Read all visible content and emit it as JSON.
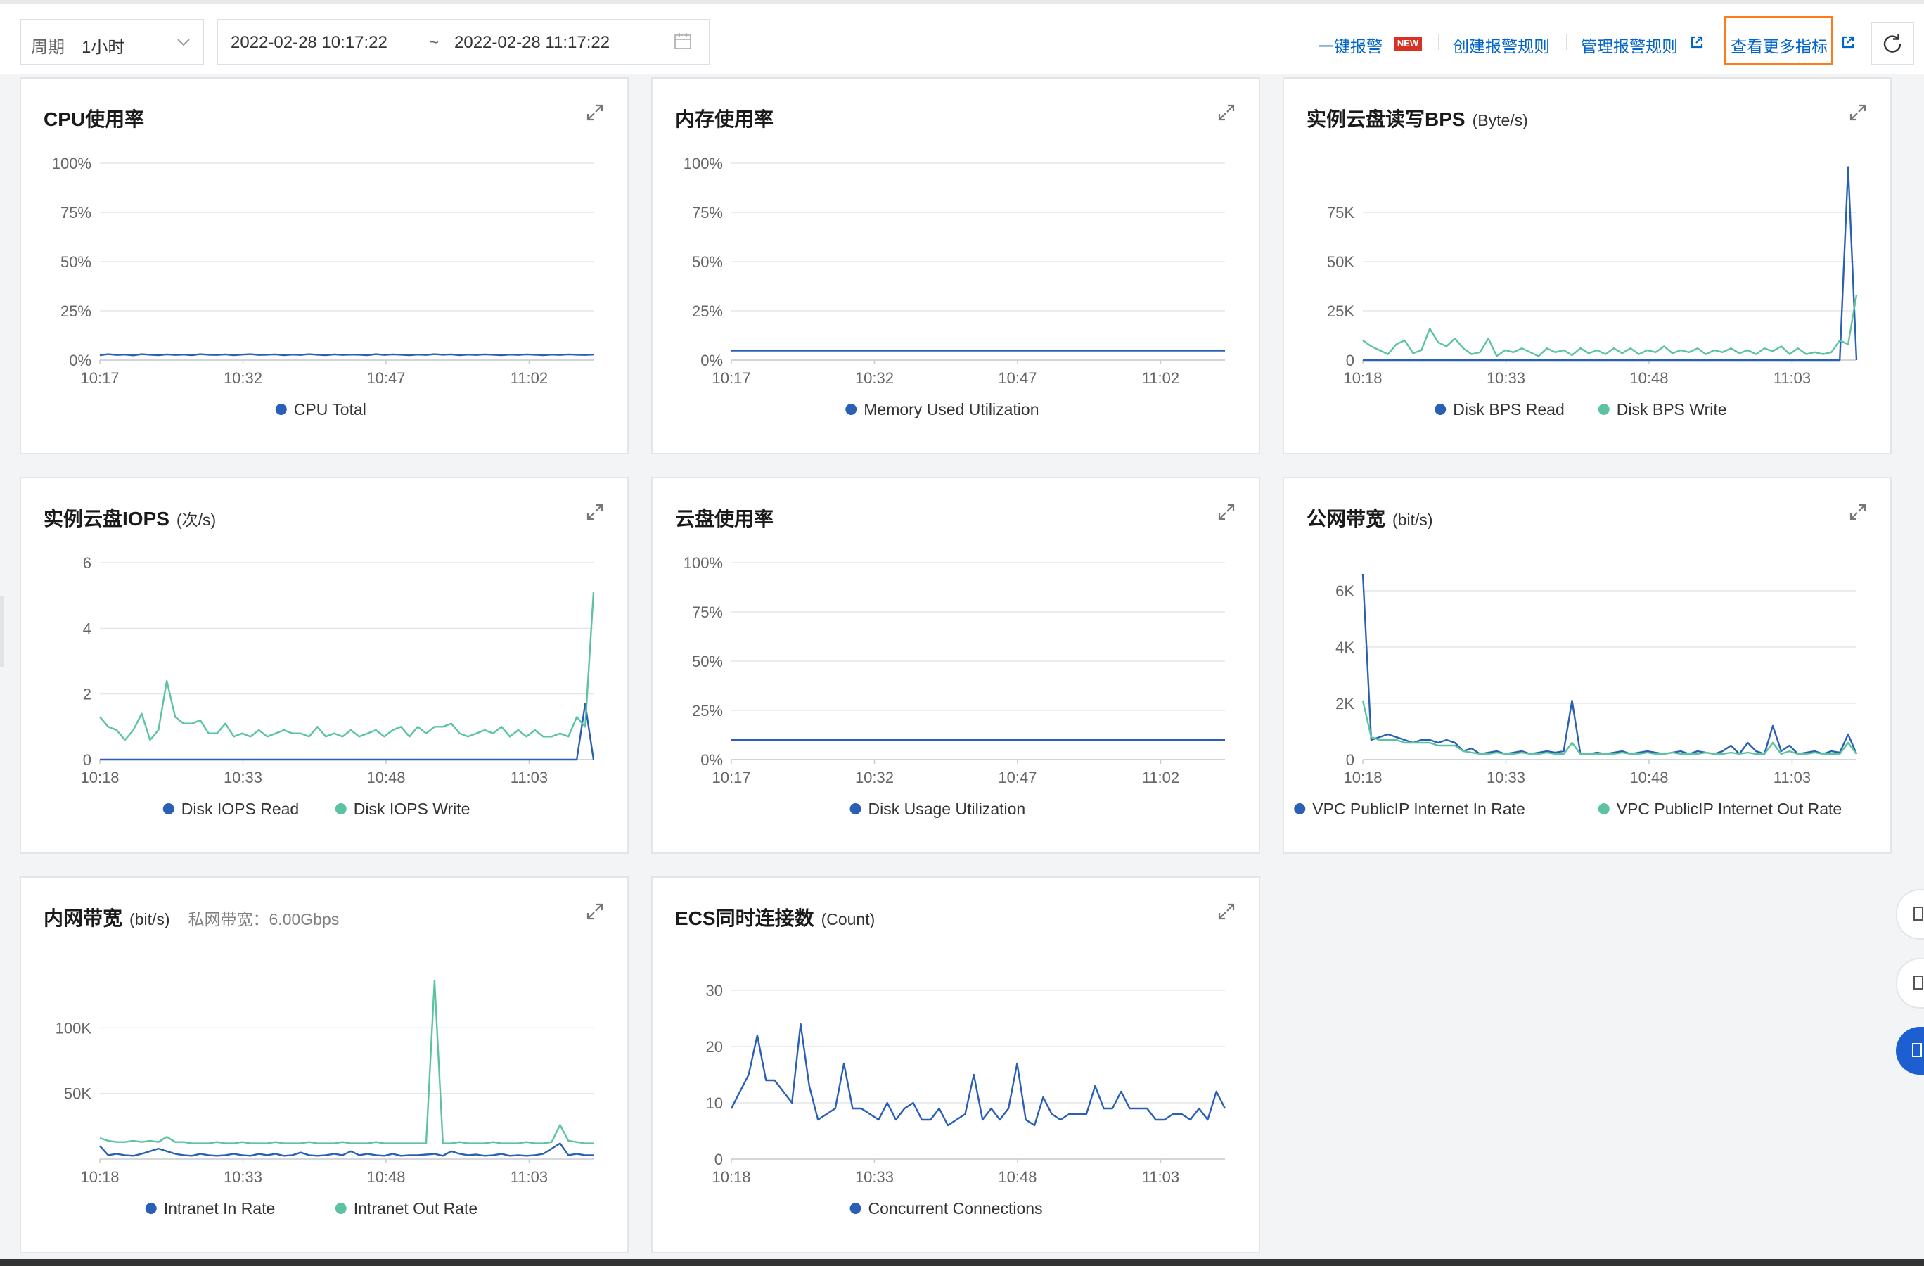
{
  "toolbar": {
    "period_label": "周期",
    "period_value": "1小时",
    "range_start": "2022-02-28 10:17:22",
    "range_sep": "~",
    "range_end": "2022-02-28 11:17:22",
    "one_click_alarm": "一键报警",
    "new_badge": "NEW",
    "create_alarm_rule": "创建报警规则",
    "manage_alarm_rule": "管理报警规则",
    "view_more_metrics": "查看更多指标"
  },
  "colors": {
    "blue_series": "#2a5fb6",
    "green_series": "#5bc49f",
    "link": "#0064c8",
    "highlight": "#ff7a1a"
  },
  "cards": [
    {
      "title": "CPU使用率",
      "unit": "",
      "extra": ""
    },
    {
      "title": "内存使用率",
      "unit": "",
      "extra": ""
    },
    {
      "title": "实例云盘读写BPS",
      "unit": "(Byte/s)",
      "extra": ""
    },
    {
      "title": "实例云盘IOPS",
      "unit": "(次/s)",
      "extra": ""
    },
    {
      "title": "云盘使用率",
      "unit": "",
      "extra": ""
    },
    {
      "title": "公网带宽",
      "unit": "(bit/s)",
      "extra": ""
    },
    {
      "title": "内网带宽",
      "unit": "(bit/s)",
      "extra": "私网带宽：6.00Gbps"
    },
    {
      "title": "ECS同时连接数",
      "unit": "(Count)",
      "extra": ""
    }
  ],
  "chart_data": [
    {
      "type": "line",
      "title": "CPU使用率",
      "x_ticks": [
        "10:17",
        "10:32",
        "10:47",
        "11:02"
      ],
      "y_ticks": [
        "0%",
        "25%",
        "50%",
        "75%",
        "100%"
      ],
      "ylim": [
        0,
        100
      ],
      "legend_position": "bottom",
      "series": [
        {
          "name": "CPU Total",
          "color": "#2a5fb6",
          "values": [
            2.5,
            3,
            2.6,
            2.8,
            2.4,
            3,
            2.7,
            2.5,
            2.9,
            2.6,
            2.8,
            2.5,
            3,
            2.7,
            2.6,
            2.9,
            2.5,
            2.8,
            3,
            2.6,
            2.7,
            2.9,
            2.5,
            2.8,
            2.6,
            3,
            2.7,
            2.5,
            2.9,
            2.6,
            2.8,
            2.7,
            2.5,
            3,
            2.6,
            2.9,
            2.7,
            2.5,
            2.8,
            2.6,
            3,
            2.7,
            2.9,
            2.5,
            2.8,
            2.6,
            2.9,
            2.7,
            2.5,
            2.8,
            2.6,
            2.9,
            2.7,
            2.5,
            2.8,
            2.6,
            2.9,
            2.7,
            2.6,
            2.8
          ]
        }
      ]
    },
    {
      "type": "line",
      "title": "内存使用率",
      "x_ticks": [
        "10:17",
        "10:32",
        "10:47",
        "11:02"
      ],
      "y_ticks": [
        "0%",
        "25%",
        "50%",
        "75%",
        "100%"
      ],
      "ylim": [
        0,
        100
      ],
      "legend_position": "bottom",
      "series": [
        {
          "name": "Memory Used Utilization",
          "color": "#2a5fb6",
          "values": [
            4.8,
            4.8,
            4.8,
            4.8,
            4.8,
            4.8,
            4.8,
            4.8,
            4.8,
            4.8,
            4.8,
            4.8,
            4.8,
            4.8,
            4.8,
            4.8,
            4.8,
            4.8,
            4.8,
            4.8,
            4.8,
            4.8,
            4.8,
            4.8,
            4.8,
            4.8,
            4.8,
            4.8,
            4.8,
            4.8,
            4.8,
            4.8,
            4.8,
            4.8,
            4.8,
            4.8,
            4.8,
            4.8,
            4.8,
            4.8,
            4.8,
            4.8,
            4.8,
            4.8,
            4.8,
            4.8,
            4.8,
            4.8,
            4.8,
            4.8,
            4.8,
            4.8,
            4.8,
            4.8,
            4.8,
            4.8,
            4.8,
            4.8,
            4.8,
            4.8
          ]
        }
      ]
    },
    {
      "type": "line",
      "title": "实例云盘读写BPS",
      "x_ticks": [
        "10:18",
        "10:33",
        "10:48",
        "11:03"
      ],
      "y_ticks": [
        "0",
        "25K",
        "50K",
        "75K"
      ],
      "ylim": [
        0,
        100000
      ],
      "legend_position": "bottom",
      "series": [
        {
          "name": "Disk BPS Read",
          "color": "#2a5fb6",
          "values": [
            0,
            0,
            0,
            0,
            0,
            0,
            0,
            0,
            0,
            0,
            0,
            0,
            0,
            0,
            0,
            0,
            0,
            0,
            0,
            0,
            0,
            0,
            0,
            0,
            0,
            0,
            0,
            0,
            0,
            0,
            0,
            0,
            0,
            0,
            0,
            0,
            0,
            0,
            0,
            0,
            0,
            0,
            0,
            0,
            0,
            0,
            0,
            0,
            0,
            0,
            0,
            0,
            0,
            0,
            0,
            0,
            0,
            0,
            98000,
            0
          ]
        },
        {
          "name": "Disk BPS Write",
          "color": "#5bc49f",
          "values": [
            10000,
            7000,
            5000,
            3000,
            8000,
            10000,
            3500,
            5000,
            16000,
            9000,
            7000,
            11000,
            6000,
            3000,
            4000,
            11000,
            2000,
            5000,
            4000,
            6000,
            4000,
            2000,
            6000,
            4000,
            5000,
            2500,
            6000,
            3500,
            5000,
            3000,
            6000,
            3500,
            6000,
            3000,
            5000,
            4000,
            7000,
            3500,
            5000,
            4000,
            6000,
            3000,
            5000,
            4000,
            6000,
            3500,
            5000,
            3000,
            6000,
            4500,
            7000,
            3000,
            6000,
            3000,
            4000,
            3000,
            4000,
            10000,
            8000,
            33000
          ]
        }
      ]
    },
    {
      "type": "line",
      "title": "实例云盘IOPS",
      "x_ticks": [
        "10:18",
        "10:33",
        "10:48",
        "11:03"
      ],
      "y_ticks": [
        "0",
        "2",
        "4",
        "6"
      ],
      "ylim": [
        0,
        6
      ],
      "legend_position": "bottom",
      "series": [
        {
          "name": "Disk IOPS Read",
          "color": "#2a5fb6",
          "values": [
            0,
            0,
            0,
            0,
            0,
            0,
            0,
            0,
            0,
            0,
            0,
            0,
            0,
            0,
            0,
            0,
            0,
            0,
            0,
            0,
            0,
            0,
            0,
            0,
            0,
            0,
            0,
            0,
            0,
            0,
            0,
            0,
            0,
            0,
            0,
            0,
            0,
            0,
            0,
            0,
            0,
            0,
            0,
            0,
            0,
            0,
            0,
            0,
            0,
            0,
            0,
            0,
            0,
            0,
            0,
            0,
            0,
            0,
            1.7,
            0
          ]
        },
        {
          "name": "Disk IOPS Write",
          "color": "#5bc49f",
          "values": [
            1.3,
            1,
            0.9,
            0.6,
            0.9,
            1.4,
            0.6,
            0.9,
            2.4,
            1.3,
            1.1,
            1.1,
            1.2,
            0.8,
            0.8,
            1.1,
            0.7,
            0.8,
            0.7,
            0.9,
            0.7,
            0.8,
            0.9,
            0.8,
            0.8,
            0.7,
            1,
            0.7,
            0.8,
            0.7,
            0.9,
            0.7,
            0.8,
            0.9,
            0.7,
            0.9,
            1,
            0.7,
            1,
            0.8,
            1,
            1,
            1.1,
            0.8,
            0.7,
            0.8,
            0.9,
            0.8,
            1,
            0.7,
            0.9,
            0.7,
            0.9,
            0.7,
            0.7,
            0.8,
            0.7,
            1.3,
            1,
            5.1
          ]
        }
      ]
    },
    {
      "type": "line",
      "title": "云盘使用率",
      "x_ticks": [
        "10:17",
        "10:32",
        "10:47",
        "11:02"
      ],
      "y_ticks": [
        "0%",
        "25%",
        "50%",
        "75%",
        "100%"
      ],
      "ylim": [
        0,
        100
      ],
      "legend_position": "bottom",
      "series": [
        {
          "name": "Disk Usage Utilization",
          "color": "#2a5fb6",
          "values": [
            10,
            10,
            10,
            10,
            10,
            10,
            10,
            10,
            10,
            10,
            10,
            10,
            10,
            10,
            10,
            10,
            10,
            10,
            10,
            10,
            10,
            10,
            10,
            10,
            10,
            10,
            10,
            10,
            10,
            10,
            10,
            10,
            10,
            10,
            10,
            10,
            10,
            10,
            10,
            10,
            10,
            10,
            10,
            10,
            10,
            10,
            10,
            10,
            10,
            10,
            10,
            10,
            10,
            10,
            10,
            10,
            10,
            10,
            10,
            10
          ]
        }
      ]
    },
    {
      "type": "line",
      "title": "公网带宽",
      "x_ticks": [
        "10:18",
        "10:33",
        "10:48",
        "11:03"
      ],
      "y_ticks": [
        "0",
        "2K",
        "4K",
        "6K"
      ],
      "ylim": [
        0,
        7000
      ],
      "legend_position": "bottom",
      "series": [
        {
          "name": "VPC PublicIP Internet In Rate",
          "color": "#2a5fb6",
          "values": [
            6600,
            700,
            800,
            900,
            800,
            700,
            600,
            700,
            700,
            600,
            700,
            600,
            300,
            400,
            200,
            250,
            300,
            200,
            250,
            300,
            200,
            250,
            300,
            250,
            300,
            2100,
            200,
            200,
            250,
            200,
            250,
            300,
            200,
            250,
            300,
            250,
            200,
            250,
            300,
            200,
            300,
            250,
            200,
            300,
            500,
            200,
            600,
            300,
            200,
            1200,
            300,
            500,
            200,
            250,
            300,
            200,
            300,
            250,
            900,
            200
          ]
        },
        {
          "name": "VPC PublicIP Internet Out Rate",
          "color": "#5bc49f",
          "values": [
            2100,
            800,
            700,
            700,
            700,
            600,
            600,
            600,
            600,
            500,
            500,
            500,
            300,
            250,
            200,
            200,
            250,
            200,
            200,
            250,
            200,
            200,
            250,
            200,
            200,
            600,
            200,
            200,
            200,
            200,
            200,
            250,
            200,
            200,
            250,
            200,
            200,
            250,
            200,
            200,
            200,
            250,
            200,
            200,
            250,
            200,
            250,
            200,
            200,
            600,
            200,
            300,
            200,
            200,
            250,
            200,
            200,
            200,
            600,
            200
          ]
        }
      ]
    },
    {
      "type": "line",
      "title": "内网带宽",
      "x_ticks": [
        "10:18",
        "10:33",
        "10:48",
        "11:03"
      ],
      "y_ticks": [
        "50K",
        "100K"
      ],
      "ylim": [
        0,
        150000
      ],
      "legend_position": "bottom",
      "series": [
        {
          "name": "Intranet In Rate",
          "color": "#2a5fb6",
          "values": [
            10000,
            3000,
            4000,
            3000,
            2500,
            4000,
            6000,
            8000,
            6000,
            4000,
            3000,
            2500,
            4000,
            3000,
            2500,
            3000,
            4000,
            3000,
            2500,
            4000,
            3000,
            4000,
            2500,
            3000,
            5000,
            3000,
            2500,
            3000,
            4000,
            3000,
            6000,
            3000,
            4000,
            3000,
            2500,
            4000,
            2500,
            3000,
            3000,
            3500,
            4000,
            2500,
            6000,
            4000,
            3000,
            3500,
            2500,
            3000,
            4000,
            2500,
            3000,
            2500,
            3000,
            4000,
            8000,
            12000,
            3000,
            4000,
            3000,
            3000
          ]
        },
        {
          "name": "Intranet Out Rate",
          "color": "#5bc49f",
          "values": [
            16000,
            14000,
            13000,
            13000,
            14000,
            13000,
            14000,
            13000,
            17000,
            13000,
            13000,
            12000,
            12000,
            12000,
            13000,
            12000,
            12000,
            13000,
            12000,
            12000,
            12000,
            13000,
            12000,
            12000,
            12000,
            13000,
            12000,
            12000,
            12000,
            13000,
            12000,
            12000,
            12000,
            13000,
            12000,
            12000,
            12000,
            12000,
            12000,
            12000,
            136000,
            12000,
            12000,
            13000,
            12000,
            12000,
            12000,
            13000,
            12000,
            12000,
            12000,
            13000,
            12000,
            12000,
            13000,
            26000,
            14000,
            13000,
            12000,
            12000
          ]
        }
      ]
    },
    {
      "type": "line",
      "title": "ECS同时连接数",
      "x_ticks": [
        "10:18",
        "10:33",
        "10:48",
        "11:03"
      ],
      "y_ticks": [
        "0",
        "10",
        "20",
        "30"
      ],
      "ylim": [
        0,
        35
      ],
      "legend_position": "bottom",
      "series": [
        {
          "name": "Concurrent Connections",
          "color": "#2a5fb6",
          "values": [
            9,
            12,
            15,
            22,
            14,
            14,
            12,
            10,
            24,
            13,
            7,
            8,
            9,
            17,
            9,
            9,
            8,
            7,
            10,
            7,
            9,
            10,
            7,
            7,
            9,
            6,
            7,
            8,
            15,
            7,
            9,
            7,
            9,
            17,
            7,
            6,
            11,
            8,
            7,
            8,
            8,
            8,
            13,
            9,
            9,
            12,
            9,
            9,
            9,
            7,
            7,
            8,
            8,
            7,
            9,
            7,
            12,
            9
          ]
        }
      ]
    }
  ]
}
